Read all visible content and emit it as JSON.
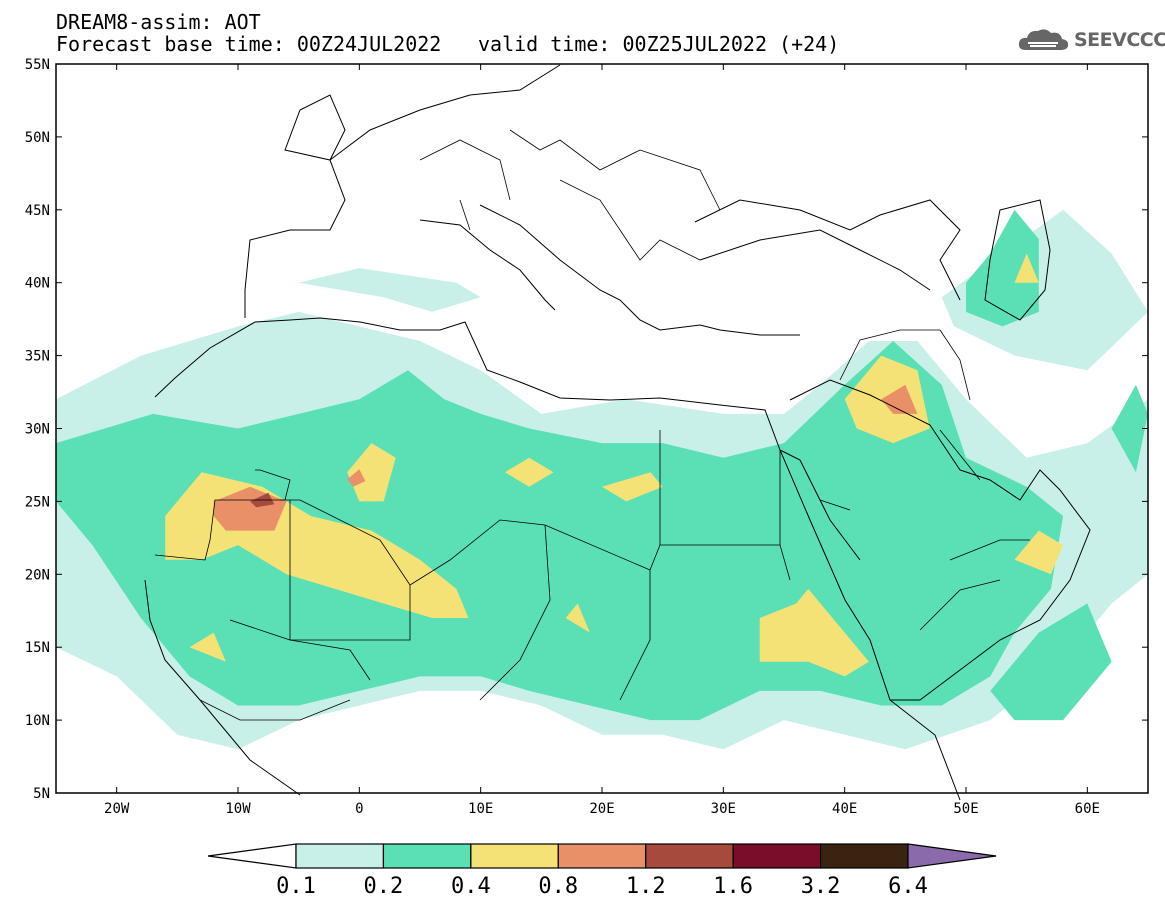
{
  "title_line1": "DREAM8-assim: AOT",
  "title_line2": "Forecast base time: 00Z24JUL2022",
  "valid_time": "valid time: 00Z25JUL2022 (+24)",
  "logo": {
    "text": "SEEVCCC",
    "icon": "cloud-icon"
  },
  "map": {
    "lon_range": [
      -25,
      65
    ],
    "lat_range": [
      5,
      55
    ],
    "lat_ticks": [
      {
        "value": 55,
        "label": "55N"
      },
      {
        "value": 50,
        "label": "50N"
      },
      {
        "value": 45,
        "label": "45N"
      },
      {
        "value": 40,
        "label": "40N"
      },
      {
        "value": 35,
        "label": "35N"
      },
      {
        "value": 30,
        "label": "30N"
      },
      {
        "value": 25,
        "label": "25N"
      },
      {
        "value": 20,
        "label": "20N"
      },
      {
        "value": 15,
        "label": "15N"
      },
      {
        "value": 10,
        "label": "10N"
      },
      {
        "value": 5,
        "label": "5N"
      }
    ],
    "lon_ticks": [
      {
        "value": -20,
        "label": "20W"
      },
      {
        "value": -10,
        "label": "10W"
      },
      {
        "value": 0,
        "label": "0"
      },
      {
        "value": 10,
        "label": "10E"
      },
      {
        "value": 20,
        "label": "20E"
      },
      {
        "value": 30,
        "label": "30E"
      },
      {
        "value": 40,
        "label": "40E"
      },
      {
        "value": 50,
        "label": "50E"
      },
      {
        "value": 60,
        "label": "60E"
      }
    ]
  },
  "colorbar": {
    "levels": [
      "0.1",
      "0.2",
      "0.4",
      "0.8",
      "1.2",
      "1.6",
      "3.2",
      "6.4"
    ],
    "colors": [
      "#ffffff",
      "#c8f0e8",
      "#5ae0b4",
      "#f5e276",
      "#ea9068",
      "#a54a3c",
      "#7a0d2a",
      "#3a2310",
      "#8a6aaa"
    ]
  },
  "aot_fields": [
    {
      "level": "0.1",
      "color": "#c8f0e8",
      "regions": [
        [
          [
            -25,
            32
          ],
          [
            -18,
            35
          ],
          [
            -10,
            37
          ],
          [
            -5,
            38
          ],
          [
            0,
            37
          ],
          [
            5,
            36
          ],
          [
            10,
            34
          ],
          [
            15,
            31
          ],
          [
            22,
            32
          ],
          [
            30,
            31
          ],
          [
            35,
            31
          ],
          [
            38,
            33
          ],
          [
            42,
            36
          ],
          [
            46,
            36
          ],
          [
            50,
            32
          ],
          [
            55,
            28
          ],
          [
            60,
            29
          ],
          [
            65,
            32
          ],
          [
            65,
            20
          ],
          [
            62,
            18
          ],
          [
            58,
            14
          ],
          [
            52,
            10
          ],
          [
            45,
            8
          ],
          [
            40,
            9
          ],
          [
            35,
            10
          ],
          [
            30,
            8
          ],
          [
            25,
            9
          ],
          [
            20,
            9
          ],
          [
            15,
            11
          ],
          [
            10,
            12
          ],
          [
            5,
            12
          ],
          [
            0,
            11
          ],
          [
            -5,
            10
          ],
          [
            -10,
            8
          ],
          [
            -15,
            9
          ],
          [
            -20,
            13
          ],
          [
            -25,
            15
          ]
        ],
        [
          [
            -5,
            40
          ],
          [
            0,
            41
          ],
          [
            8,
            40
          ],
          [
            10,
            39
          ],
          [
            6,
            38
          ],
          [
            2,
            39
          ]
        ],
        [
          [
            48,
            39
          ],
          [
            53,
            42
          ],
          [
            58,
            45
          ],
          [
            62,
            42
          ],
          [
            65,
            38
          ],
          [
            60,
            34
          ],
          [
            54,
            35
          ],
          [
            49,
            37
          ]
        ]
      ]
    },
    {
      "level": "0.2",
      "color": "#5ae0b4",
      "regions": [
        [
          [
            -25,
            29
          ],
          [
            -17,
            31
          ],
          [
            -10,
            30
          ],
          [
            -5,
            31
          ],
          [
            0,
            32
          ],
          [
            4,
            34
          ],
          [
            7,
            32
          ],
          [
            10,
            31
          ],
          [
            14,
            30
          ],
          [
            20,
            29
          ],
          [
            25,
            29
          ],
          [
            30,
            28
          ],
          [
            35,
            29
          ],
          [
            40,
            33
          ],
          [
            44,
            36
          ],
          [
            48,
            33
          ],
          [
            50,
            28
          ],
          [
            55,
            26
          ],
          [
            58,
            24
          ],
          [
            57,
            19
          ],
          [
            54,
            16
          ],
          [
            52,
            13
          ],
          [
            48,
            11
          ],
          [
            43,
            11
          ],
          [
            38,
            12
          ],
          [
            33,
            12
          ],
          [
            28,
            10
          ],
          [
            24,
            10
          ],
          [
            19,
            11
          ],
          [
            14,
            12
          ],
          [
            10,
            13
          ],
          [
            5,
            13
          ],
          [
            0,
            12
          ],
          [
            -5,
            11
          ],
          [
            -10,
            11
          ],
          [
            -14,
            13
          ],
          [
            -18,
            17
          ],
          [
            -22,
            22
          ],
          [
            -25,
            25
          ]
        ],
        [
          [
            50,
            40
          ],
          [
            52,
            42
          ],
          [
            54,
            45
          ],
          [
            56,
            43
          ],
          [
            56,
            38
          ],
          [
            53,
            37
          ],
          [
            50,
            38
          ]
        ],
        [
          [
            62,
            30
          ],
          [
            64,
            33
          ],
          [
            65,
            31
          ],
          [
            64,
            27
          ]
        ],
        [
          [
            52,
            12
          ],
          [
            56,
            16
          ],
          [
            60,
            18
          ],
          [
            62,
            14
          ],
          [
            58,
            10
          ],
          [
            54,
            10
          ]
        ]
      ]
    },
    {
      "level": "0.4",
      "color": "#f5e276",
      "regions": [
        [
          [
            -16,
            24
          ],
          [
            -13,
            27
          ],
          [
            -8,
            26
          ],
          [
            -4,
            24
          ],
          [
            1,
            23
          ],
          [
            5,
            21
          ],
          [
            8,
            19
          ],
          [
            9,
            17
          ],
          [
            6,
            17
          ],
          [
            2,
            18
          ],
          [
            -2,
            19
          ],
          [
            -6,
            20
          ],
          [
            -10,
            22
          ],
          [
            -13,
            21
          ],
          [
            -16,
            21
          ]
        ],
        [
          [
            -1,
            27
          ],
          [
            1,
            29
          ],
          [
            3,
            28
          ],
          [
            2,
            25
          ],
          [
            0,
            25
          ]
        ],
        [
          [
            12,
            27
          ],
          [
            14,
            28
          ],
          [
            16,
            27
          ],
          [
            14,
            26
          ]
        ],
        [
          [
            20,
            26
          ],
          [
            24,
            27
          ],
          [
            25,
            26
          ],
          [
            22,
            25
          ]
        ],
        [
          [
            33,
            17
          ],
          [
            36,
            18
          ],
          [
            37,
            19
          ],
          [
            40,
            16
          ],
          [
            42,
            14
          ],
          [
            40,
            13
          ],
          [
            37,
            14
          ],
          [
            33,
            14
          ]
        ],
        [
          [
            40,
            32
          ],
          [
            43,
            35
          ],
          [
            46,
            34
          ],
          [
            47,
            30
          ],
          [
            44,
            29
          ],
          [
            41,
            30
          ]
        ],
        [
          [
            54,
            21
          ],
          [
            56,
            23
          ],
          [
            58,
            22
          ],
          [
            57,
            20
          ]
        ],
        [
          [
            -14,
            15
          ],
          [
            -12,
            16
          ],
          [
            -11,
            14
          ]
        ],
        [
          [
            17,
            17
          ],
          [
            18,
            18
          ],
          [
            19,
            16
          ]
        ],
        [
          [
            54,
            40
          ],
          [
            55,
            42
          ],
          [
            56,
            40
          ]
        ]
      ]
    },
    {
      "level": "0.8",
      "color": "#ea9068",
      "regions": [
        [
          [
            -12,
            25
          ],
          [
            -9,
            26
          ],
          [
            -6,
            25
          ],
          [
            -7,
            23
          ],
          [
            -11,
            23
          ],
          [
            -12,
            24
          ]
        ],
        [
          [
            43,
            32
          ],
          [
            45,
            33
          ],
          [
            46,
            31
          ],
          [
            44,
            31
          ]
        ],
        [
          [
            -1,
            26.5
          ],
          [
            0,
            27.2
          ],
          [
            0.5,
            26.4
          ],
          [
            -0.5,
            26
          ]
        ]
      ]
    },
    {
      "level": "1.2",
      "color": "#a54a3c",
      "regions": [
        [
          [
            -9,
            25
          ],
          [
            -7.5,
            25.6
          ],
          [
            -7,
            24.8
          ],
          [
            -8.5,
            24.6
          ]
        ]
      ]
    }
  ]
}
